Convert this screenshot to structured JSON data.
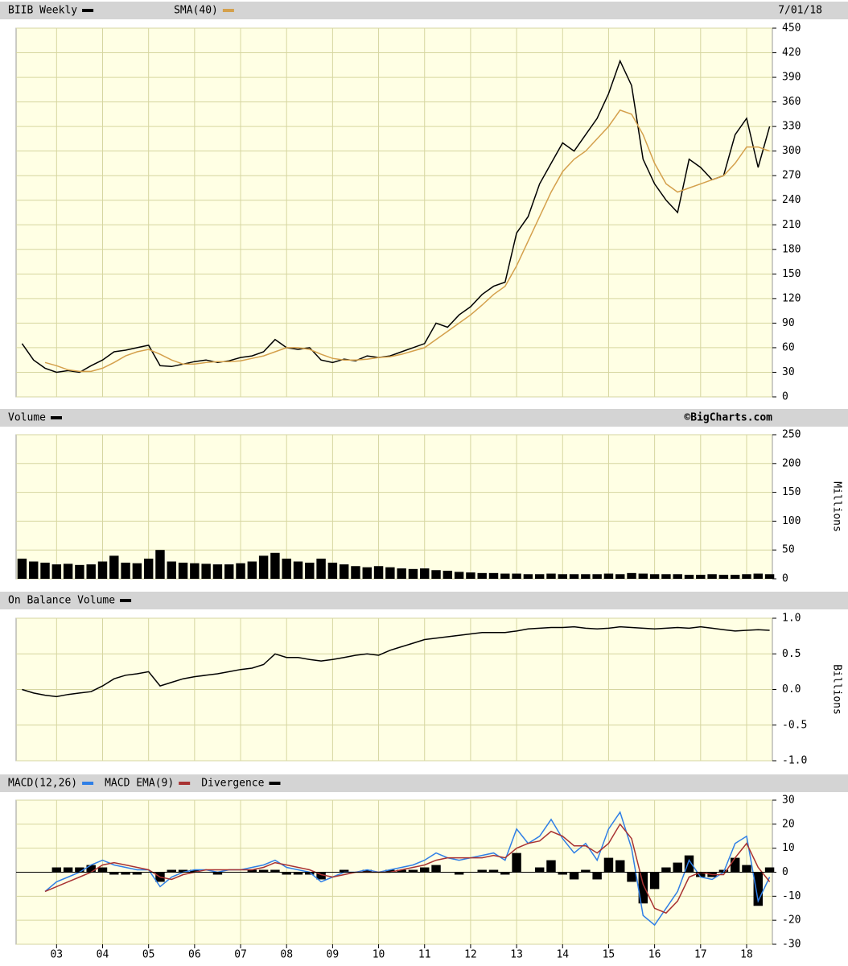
{
  "chart_data": [
    {
      "type": "line",
      "date": "7/01/18",
      "x": [
        2.25,
        2.5,
        2.75,
        3,
        3.25,
        3.5,
        3.75,
        4,
        4.25,
        4.5,
        4.75,
        5,
        5.25,
        5.5,
        5.75,
        6,
        6.25,
        6.5,
        6.75,
        7,
        7.25,
        7.5,
        7.75,
        8,
        8.25,
        8.5,
        8.75,
        9,
        9.25,
        9.5,
        9.75,
        10,
        10.25,
        10.5,
        10.75,
        11,
        11.25,
        11.5,
        11.75,
        12,
        12.25,
        12.5,
        12.75,
        13,
        13.25,
        13.5,
        13.75,
        14,
        14.25,
        14.5,
        14.75,
        15,
        15.25,
        15.5,
        15.75,
        16,
        16.25,
        16.5,
        16.75,
        17,
        17.25,
        17.5,
        17.75,
        18,
        18.25,
        18.5
      ],
      "series": [
        {
          "name": "BIIB Weekly",
          "color": "#000000",
          "values": [
            65,
            45,
            35,
            30,
            32,
            30,
            38,
            45,
            55,
            57,
            60,
            63,
            38,
            37,
            40,
            43,
            45,
            42,
            44,
            48,
            50,
            55,
            70,
            60,
            58,
            60,
            45,
            42,
            46,
            44,
            50,
            48,
            50,
            55,
            60,
            65,
            90,
            85,
            100,
            110,
            125,
            135,
            140,
            200,
            220,
            260,
            285,
            310,
            300,
            320,
            340,
            370,
            410,
            380,
            290,
            260,
            240,
            225,
            290,
            280,
            265,
            270,
            320,
            340,
            280,
            330
          ]
        },
        {
          "name": "SMA(40)",
          "color": "#d4a04c",
          "values": [
            null,
            null,
            42,
            38,
            33,
            31,
            31,
            35,
            42,
            50,
            55,
            58,
            52,
            45,
            40,
            40,
            42,
            43,
            43,
            44,
            47,
            50,
            55,
            60,
            60,
            58,
            52,
            47,
            45,
            45,
            46,
            48,
            49,
            52,
            56,
            60,
            70,
            80,
            90,
            100,
            112,
            125,
            135,
            160,
            190,
            220,
            250,
            275,
            290,
            300,
            315,
            330,
            350,
            345,
            320,
            285,
            260,
            250,
            255,
            260,
            265,
            270,
            285,
            305,
            305,
            300
          ]
        }
      ],
      "xlim": [
        2.12,
        18.56
      ],
      "ylim": [
        0,
        450
      ],
      "yticks": [
        0,
        30,
        60,
        90,
        120,
        150,
        180,
        210,
        240,
        270,
        300,
        330,
        360,
        390,
        420,
        450
      ],
      "grid": true
    },
    {
      "type": "bar",
      "note": "©BigCharts.com",
      "ylabel": "Millions",
      "x": [
        2.25,
        2.5,
        2.75,
        3,
        3.25,
        3.5,
        3.75,
        4,
        4.25,
        4.5,
        4.75,
        5,
        5.25,
        5.5,
        5.75,
        6,
        6.25,
        6.5,
        6.75,
        7,
        7.25,
        7.5,
        7.75,
        8,
        8.25,
        8.5,
        8.75,
        9,
        9.25,
        9.5,
        9.75,
        10,
        10.25,
        10.5,
        10.75,
        11,
        11.25,
        11.5,
        11.75,
        12,
        12.25,
        12.5,
        12.75,
        13,
        13.25,
        13.5,
        13.75,
        14,
        14.25,
        14.5,
        14.75,
        15,
        15.25,
        15.5,
        15.75,
        16,
        16.25,
        16.5,
        16.75,
        17,
        17.25,
        17.5,
        17.75,
        18,
        18.25,
        18.5
      ],
      "series": [
        {
          "name": "Volume",
          "color": "#000000",
          "values": [
            35,
            30,
            28,
            25,
            26,
            24,
            25,
            30,
            40,
            28,
            27,
            35,
            50,
            30,
            28,
            27,
            26,
            25,
            25,
            27,
            30,
            40,
            45,
            35,
            30,
            28,
            35,
            28,
            25,
            22,
            20,
            22,
            20,
            18,
            17,
            18,
            15,
            14,
            12,
            11,
            10,
            10,
            9,
            9,
            8,
            8,
            9,
            8,
            8,
            8,
            8,
            9,
            8,
            10,
            9,
            8,
            8,
            8,
            7,
            7,
            8,
            7,
            7,
            8,
            9,
            8
          ]
        }
      ],
      "xlim": [
        2.12,
        18.56
      ],
      "ylim": [
        0,
        250
      ],
      "yticks": [
        0,
        50,
        100,
        150,
        200,
        250
      ],
      "grid": true
    },
    {
      "type": "line",
      "ylabel": "Billions",
      "x": [
        2.25,
        2.5,
        2.75,
        3,
        3.25,
        3.5,
        3.75,
        4,
        4.25,
        4.5,
        4.75,
        5,
        5.25,
        5.5,
        5.75,
        6,
        6.25,
        6.5,
        6.75,
        7,
        7.25,
        7.5,
        7.75,
        8,
        8.25,
        8.5,
        8.75,
        9,
        9.25,
        9.5,
        9.75,
        10,
        10.25,
        10.5,
        10.75,
        11,
        11.25,
        11.5,
        11.75,
        12,
        12.25,
        12.5,
        12.75,
        13,
        13.25,
        13.5,
        13.75,
        14,
        14.25,
        14.5,
        14.75,
        15,
        15.25,
        15.5,
        15.75,
        16,
        16.25,
        16.5,
        16.75,
        17,
        17.25,
        17.5,
        17.75,
        18,
        18.25,
        18.5
      ],
      "series": [
        {
          "name": "On Balance Volume",
          "color": "#000000",
          "values": [
            0,
            -0.05,
            -0.08,
            -0.1,
            -0.07,
            -0.05,
            -0.03,
            0.05,
            0.15,
            0.2,
            0.22,
            0.25,
            0.05,
            0.1,
            0.15,
            0.18,
            0.2,
            0.22,
            0.25,
            0.28,
            0.3,
            0.35,
            0.5,
            0.45,
            0.45,
            0.42,
            0.4,
            0.42,
            0.45,
            0.48,
            0.5,
            0.48,
            0.55,
            0.6,
            0.65,
            0.7,
            0.72,
            0.74,
            0.76,
            0.78,
            0.8,
            0.8,
            0.8,
            0.82,
            0.85,
            0.86,
            0.87,
            0.87,
            0.88,
            0.86,
            0.85,
            0.86,
            0.88,
            0.87,
            0.86,
            0.85,
            0.86,
            0.87,
            0.86,
            0.88,
            0.86,
            0.84,
            0.82,
            0.83,
            0.84,
            0.83
          ]
        }
      ],
      "xlim": [
        2.12,
        18.56
      ],
      "ylim": [
        -1,
        1
      ],
      "yticks": [
        {
          "value": -1,
          "label": "-1.0"
        },
        -0.5,
        {
          "value": 0,
          "label": "0.0"
        },
        0.5,
        {
          "value": 1,
          "label": "1.0"
        }
      ],
      "grid": true
    },
    {
      "type": "line",
      "x": [
        2.25,
        2.5,
        2.75,
        3,
        3.25,
        3.5,
        3.75,
        4,
        4.25,
        4.5,
        4.75,
        5,
        5.25,
        5.5,
        5.75,
        6,
        6.25,
        6.5,
        6.75,
        7,
        7.25,
        7.5,
        7.75,
        8,
        8.25,
        8.5,
        8.75,
        9,
        9.25,
        9.5,
        9.75,
        10,
        10.25,
        10.5,
        10.75,
        11,
        11.25,
        11.5,
        11.75,
        12,
        12.25,
        12.5,
        12.75,
        13,
        13.25,
        13.5,
        13.75,
        14,
        14.25,
        14.5,
        14.75,
        15,
        15.25,
        15.5,
        15.75,
        16,
        16.25,
        16.5,
        16.75,
        17,
        17.25,
        17.5,
        17.75,
        18,
        18.25,
        18.5
      ],
      "series": [
        {
          "name": "MACD(12,26)",
          "color": "#2f7fe6",
          "values": [
            null,
            null,
            -8,
            -4,
            -2,
            0,
            3,
            5,
            3,
            2,
            1,
            1,
            -6,
            -2,
            0,
            1,
            1,
            0,
            1,
            1,
            2,
            3,
            5,
            2,
            1,
            0,
            -4,
            -2,
            0,
            0,
            1,
            0,
            1,
            2,
            3,
            5,
            8,
            6,
            5,
            6,
            7,
            8,
            5,
            18,
            12,
            15,
            22,
            14,
            8,
            12,
            5,
            18,
            25,
            10,
            -18,
            -22,
            -15,
            -8,
            5,
            -2,
            -3,
            0,
            12,
            15,
            -12,
            -2
          ]
        },
        {
          "name": "MACD EMA(9)",
          "color": "#a83232",
          "values": [
            null,
            null,
            -8,
            -6,
            -4,
            -2,
            0,
            3,
            4,
            3,
            2,
            1,
            -2,
            -3,
            -1,
            0,
            1,
            1,
            1,
            1,
            1,
            2,
            4,
            3,
            2,
            1,
            -1,
            -2,
            -1,
            0,
            0,
            0,
            0,
            1,
            2,
            3,
            5,
            6,
            6,
            6,
            6,
            7,
            6,
            10,
            12,
            13,
            17,
            15,
            11,
            11,
            8,
            12,
            20,
            14,
            -5,
            -15,
            -17,
            -12,
            -2,
            0,
            -1,
            -1,
            6,
            12,
            2,
            -4
          ]
        },
        {
          "name": "Divergence",
          "color": "#000000",
          "style": "bar",
          "values": [
            null,
            null,
            0,
            2,
            2,
            2,
            3,
            2,
            -1,
            -1,
            -1,
            0,
            -4,
            1,
            1,
            1,
            0,
            -1,
            0,
            0,
            1,
            1,
            1,
            -1,
            -1,
            -1,
            -3,
            0,
            1,
            0,
            1,
            0,
            1,
            1,
            1,
            2,
            3,
            0,
            -1,
            0,
            1,
            1,
            -1,
            8,
            0,
            2,
            5,
            -1,
            -3,
            1,
            -3,
            6,
            5,
            -4,
            -13,
            -7,
            2,
            4,
            7,
            -2,
            -2,
            1,
            6,
            3,
            -14,
            2
          ]
        }
      ],
      "xlim": [
        2.12,
        18.56
      ],
      "ylim": [
        -30,
        30
      ],
      "yticks": [
        -30,
        -20,
        -10,
        0,
        10,
        20,
        30
      ],
      "xticks": [
        {
          "value": 3,
          "label": "03"
        },
        {
          "value": 4,
          "label": "04"
        },
        {
          "value": 5,
          "label": "05"
        },
        {
          "value": 6,
          "label": "06"
        },
        {
          "value": 7,
          "label": "07"
        },
        {
          "value": 8,
          "label": "08"
        },
        {
          "value": 9,
          "label": "09"
        },
        {
          "value": 10,
          "label": "10"
        },
        {
          "value": 11,
          "label": "11"
        },
        {
          "value": 12,
          "label": "12"
        },
        {
          "value": 13,
          "label": "13"
        },
        {
          "value": 14,
          "label": "14"
        },
        {
          "value": 15,
          "label": "15"
        },
        {
          "value": 16,
          "label": "16"
        },
        {
          "value": 17,
          "label": "17"
        },
        {
          "value": 18,
          "label": "18"
        }
      ],
      "grid": true,
      "zero_line": true
    }
  ]
}
